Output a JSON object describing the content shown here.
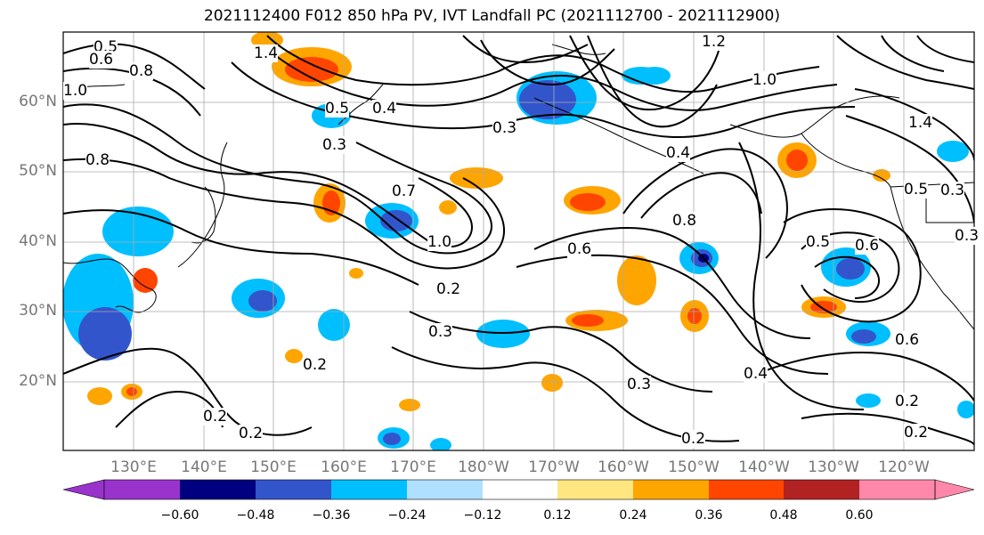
{
  "title": "2021112400 F012 850 hPa PV, IVT Landfall PC (2021112700 - 2021112900)",
  "lat_labels": [
    "60°N",
    "50°N",
    "40°N",
    "30°N",
    "20°N"
  ],
  "lon_labels": [
    "130°E",
    "140°E",
    "150°E",
    "160°E",
    "170°E",
    "180°W",
    "170°W",
    "160°W",
    "150°W",
    "140°W",
    "130°W",
    "120°W"
  ],
  "colorbar": {
    "tick_labels": [
      "−0.60",
      "−0.48",
      "−0.36",
      "−0.24",
      "−0.12",
      "0.12",
      "0.24",
      "0.36",
      "0.48",
      "0.60"
    ],
    "colors": [
      "#9933cc",
      "#000080",
      "#3355cc",
      "#00bfff",
      "#b0e0ff",
      "#ffffff",
      "#ffe680",
      "#ffa500",
      "#ff4500",
      "#b22222",
      "#ff88aa"
    ]
  },
  "contour_labels": [
    "0.5",
    "0.6",
    "0.8",
    "1.0",
    "1.4",
    "1.2",
    "0.4",
    "0.3",
    "0.5",
    "0.3",
    "0.8",
    "0.7",
    "1.0",
    "0.2",
    "0.3",
    "0.6",
    "0.8",
    "0.4",
    "0.6",
    "0.5",
    "0.6",
    "0.2",
    "0.3",
    "0.2",
    "0.2",
    "0.3",
    "0.2",
    "0.4",
    "0.5",
    "0.2",
    "0.2",
    "1.0",
    "1.4",
    "0.3"
  ]
}
